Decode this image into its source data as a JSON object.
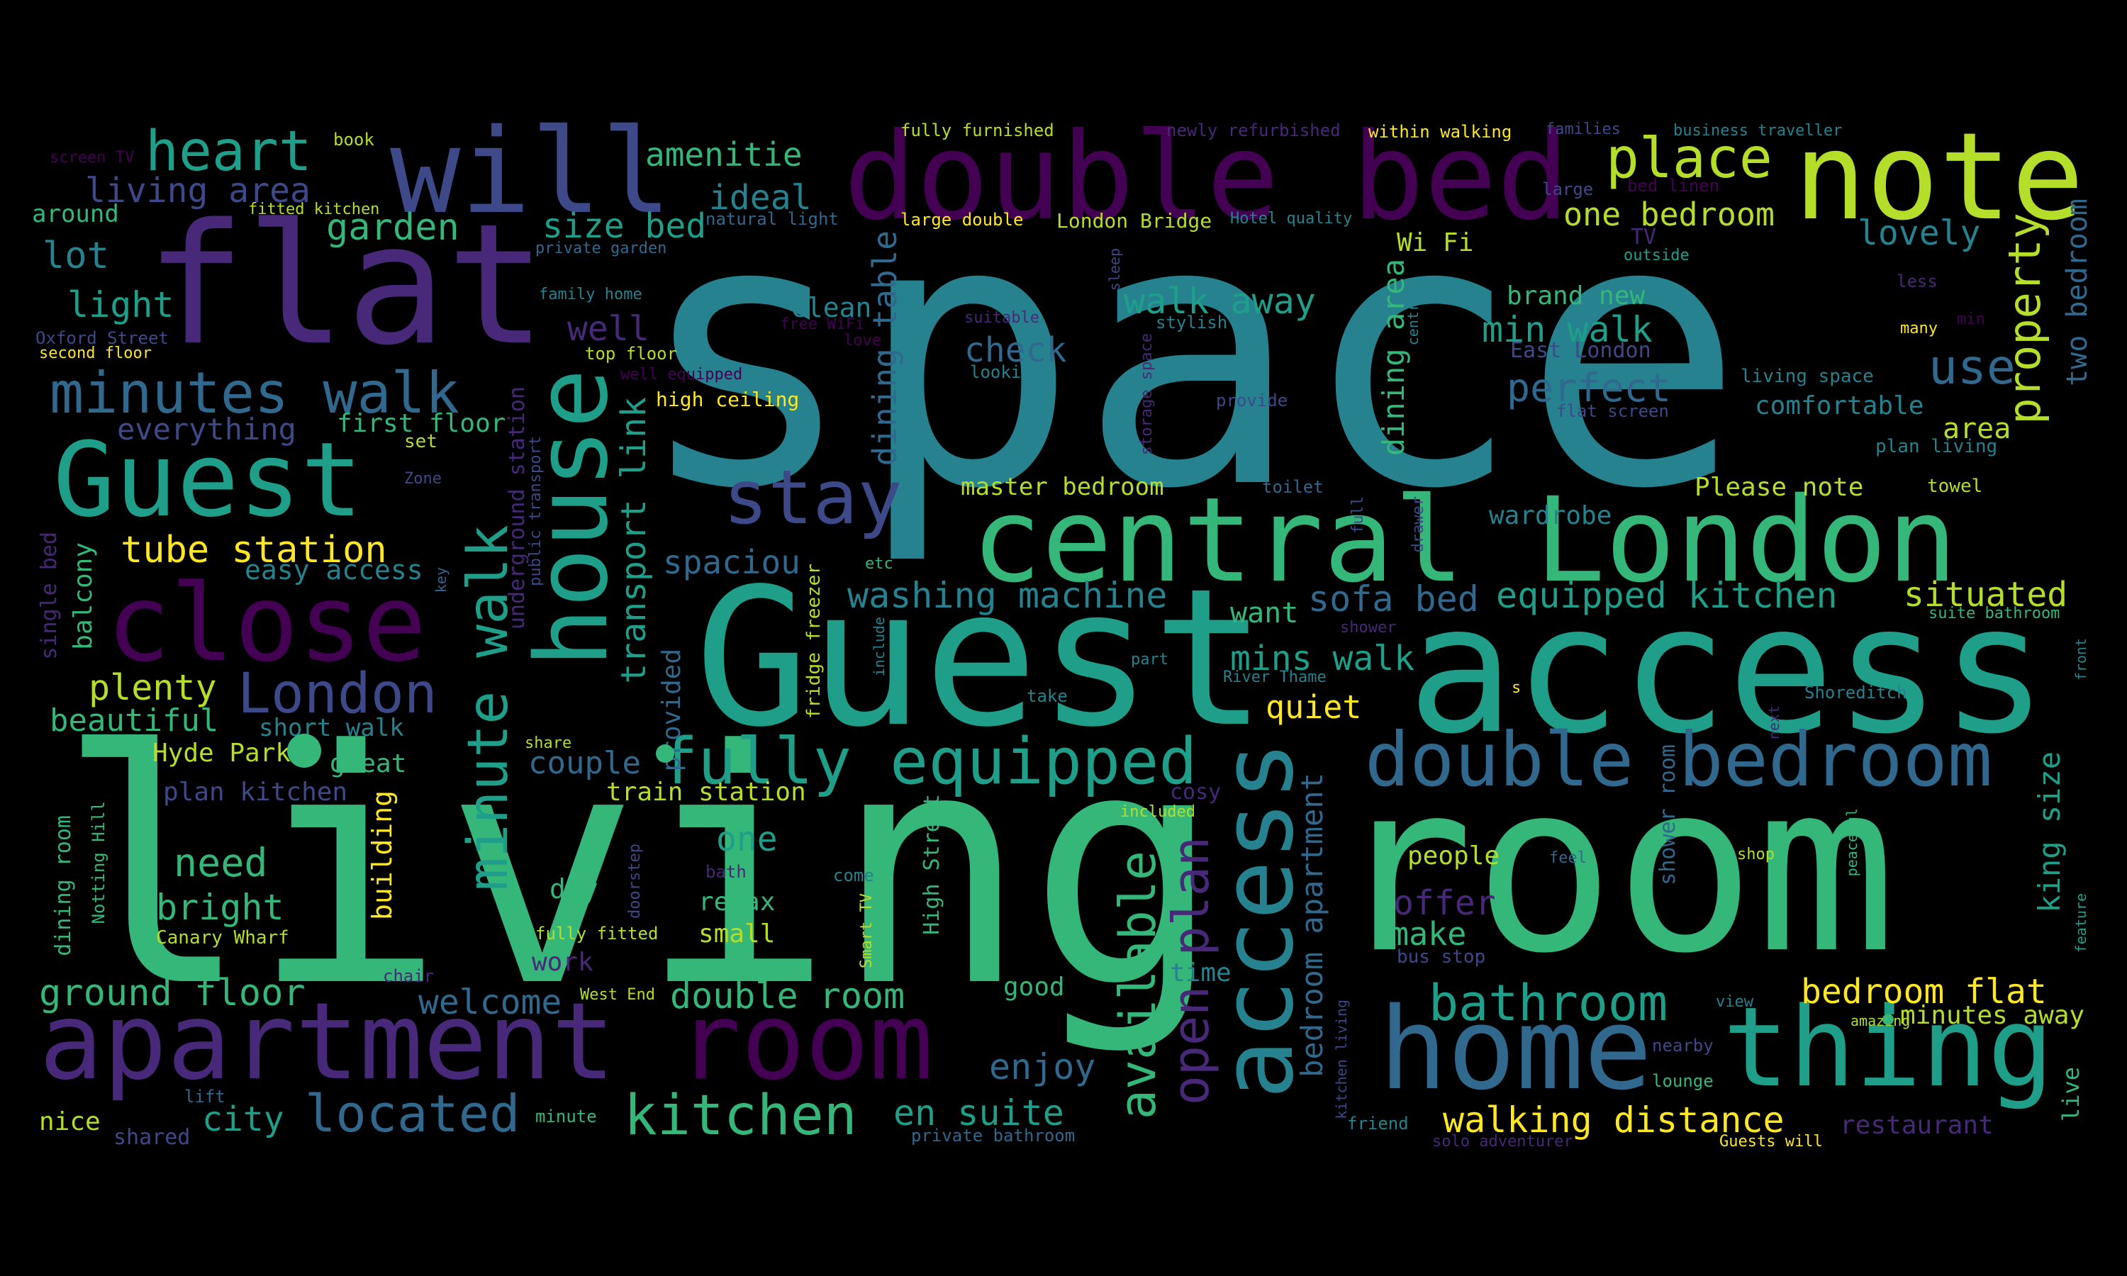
{
  "colors": {
    "background": "#000000",
    "dark_purple": "#440154",
    "purple": "#482878",
    "indigo": "#3e4989",
    "blue": "#31688e",
    "teal": "#26828e",
    "sea_green": "#1f9e89",
    "green": "#35b779",
    "light_green": "#6ece58",
    "lime": "#b5de2b",
    "yellow": "#fde725"
  },
  "words": [
    {
      "text": "space"
    },
    {
      "text": "living"
    },
    {
      "text": "room"
    },
    {
      "text": "Guest"
    },
    {
      "text": "access"
    },
    {
      "text": "flat"
    },
    {
      "text": "double bed"
    },
    {
      "text": "central London"
    },
    {
      "text": "note"
    },
    {
      "text": "will"
    },
    {
      "text": "apartment"
    },
    {
      "text": "room"
    },
    {
      "text": "home"
    },
    {
      "text": "thing"
    },
    {
      "text": "close"
    },
    {
      "text": "Guest"
    },
    {
      "text": "house"
    },
    {
      "text": "access"
    },
    {
      "text": "double bedroom"
    },
    {
      "text": "fully equipped"
    },
    {
      "text": "minutes walk"
    },
    {
      "text": "minute walk"
    },
    {
      "text": "heart"
    },
    {
      "text": "place"
    },
    {
      "text": "stay"
    },
    {
      "text": "London"
    },
    {
      "text": "kitchen"
    },
    {
      "text": "located"
    },
    {
      "text": "bathroom"
    },
    {
      "text": "available"
    },
    {
      "text": "open plan"
    },
    {
      "text": "property"
    },
    {
      "text": "use"
    },
    {
      "text": "walking distance"
    },
    {
      "text": "en suite"
    },
    {
      "text": "equipped kitchen"
    },
    {
      "text": "washing machine"
    },
    {
      "text": "sofa bed"
    },
    {
      "text": "tube station"
    },
    {
      "text": "bedroom flat"
    },
    {
      "text": "perfect"
    },
    {
      "text": "min walk"
    },
    {
      "text": "walk away"
    },
    {
      "text": "one bedroom"
    },
    {
      "text": "lovely"
    },
    {
      "text": "situated"
    },
    {
      "text": "double room"
    },
    {
      "text": "ground floor"
    },
    {
      "text": "welcome"
    },
    {
      "text": "enjoy"
    },
    {
      "text": "city"
    },
    {
      "text": "need"
    },
    {
      "text": "bright"
    },
    {
      "text": "plenty"
    },
    {
      "text": "beautiful"
    },
    {
      "text": "living area"
    },
    {
      "text": "garden"
    },
    {
      "text": "lot"
    },
    {
      "text": "light"
    },
    {
      "text": "amenitie"
    },
    {
      "text": "ideal"
    },
    {
      "text": "size bed"
    },
    {
      "text": "well"
    },
    {
      "text": "check"
    },
    {
      "text": "clean"
    },
    {
      "text": "transport link"
    },
    {
      "text": "dining table"
    },
    {
      "text": "dining area"
    },
    {
      "text": "two bedroom"
    },
    {
      "text": "mins walk"
    },
    {
      "text": "quiet"
    },
    {
      "text": "spaciou"
    },
    {
      "text": "couple"
    },
    {
      "text": "one"
    },
    {
      "text": "make"
    },
    {
      "text": "offer"
    },
    {
      "text": "king size"
    },
    {
      "text": "bedroom apartment"
    },
    {
      "text": "everything"
    },
    {
      "text": "first floor"
    },
    {
      "text": "easy access"
    },
    {
      "text": "short walk"
    },
    {
      "text": "Hyde Park"
    },
    {
      "text": "great"
    },
    {
      "text": "plan kitchen"
    },
    {
      "text": "train station"
    },
    {
      "text": "master bedroom"
    },
    {
      "text": "comfortable"
    },
    {
      "text": "brand new"
    },
    {
      "text": "Wi Fi"
    },
    {
      "text": "Please note"
    },
    {
      "text": "area"
    },
    {
      "text": "want"
    },
    {
      "text": "people"
    },
    {
      "text": "day"
    },
    {
      "text": "relax"
    },
    {
      "text": "small"
    },
    {
      "text": "work"
    },
    {
      "text": "good"
    },
    {
      "text": "time"
    },
    {
      "text": "building"
    },
    {
      "text": "balcony"
    },
    {
      "text": "nice"
    },
    {
      "text": "shared"
    },
    {
      "text": "minutes away"
    },
    {
      "text": "restaurant"
    },
    {
      "text": "provided"
    },
    {
      "text": "wardrobe"
    },
    {
      "text": "East London"
    },
    {
      "text": "around"
    },
    {
      "text": "fitted kitchen"
    },
    {
      "text": "book"
    },
    {
      "text": "screen TV"
    },
    {
      "text": "Oxford Street"
    },
    {
      "text": "second floor"
    },
    {
      "text": "top floor"
    },
    {
      "text": "family home"
    },
    {
      "text": "private garden"
    },
    {
      "text": "natural light"
    },
    {
      "text": "fully furnished"
    },
    {
      "text": "newly refurbished"
    },
    {
      "text": "within walking"
    },
    {
      "text": "families"
    },
    {
      "text": "business traveller"
    },
    {
      "text": "large"
    },
    {
      "text": "bed linen"
    },
    {
      "text": "large double"
    },
    {
      "text": "London Bridge"
    },
    {
      "text": "Hotel quality"
    },
    {
      "text": "TV"
    },
    {
      "text": "outside"
    },
    {
      "text": "less"
    },
    {
      "text": "min"
    },
    {
      "text": "many"
    },
    {
      "text": "stylish"
    },
    {
      "text": "free WiFi"
    },
    {
      "text": "suitable"
    },
    {
      "text": "love"
    },
    {
      "text": "looking"
    },
    {
      "text": "well equipped"
    },
    {
      "text": "high ceiling"
    },
    {
      "text": "provide"
    },
    {
      "text": "living space"
    },
    {
      "text": "flat screen"
    },
    {
      "text": "plan living"
    },
    {
      "text": "towel"
    },
    {
      "text": "toilet"
    },
    {
      "text": "set"
    },
    {
      "text": "Zone"
    },
    {
      "text": "fully fitted"
    },
    {
      "text": "Canary Wharf"
    },
    {
      "text": "Notting Hill"
    },
    {
      "text": "dining room"
    },
    {
      "text": "single bed"
    },
    {
      "text": "underground station"
    },
    {
      "text": "public transport"
    },
    {
      "text": "key"
    },
    {
      "text": "fridge freezer"
    },
    {
      "text": "etc"
    },
    {
      "text": "include"
    },
    {
      "text": "share"
    },
    {
      "text": "storage space"
    },
    {
      "text": "sleep"
    },
    {
      "text": "centre"
    },
    {
      "text": "full"
    },
    {
      "text": "drawer"
    },
    {
      "text": "shower"
    },
    {
      "text": "part"
    },
    {
      "text": "River Thame"
    },
    {
      "text": "take"
    },
    {
      "text": "s"
    },
    {
      "text": "Shoreditch"
    },
    {
      "text": "suite bathroom"
    },
    {
      "text": "next"
    },
    {
      "text": "front"
    },
    {
      "text": "cosy"
    },
    {
      "text": "included"
    },
    {
      "text": "High Street"
    },
    {
      "text": "doorstep"
    },
    {
      "text": "bath"
    },
    {
      "text": "come"
    },
    {
      "text": "Smart TV"
    },
    {
      "text": "shower room"
    },
    {
      "text": "feel"
    },
    {
      "text": "shop"
    },
    {
      "text": "peaceful"
    },
    {
      "text": "feature"
    },
    {
      "text": "chair"
    },
    {
      "text": "West End"
    },
    {
      "text": "lift"
    },
    {
      "text": "minute"
    },
    {
      "text": "private bathroom"
    },
    {
      "text": "view"
    },
    {
      "text": "amazing"
    },
    {
      "text": "nearby"
    },
    {
      "text": "lounge"
    },
    {
      "text": "friend"
    },
    {
      "text": "solo adventurer"
    },
    {
      "text": "Guests will"
    },
    {
      "text": "bus stop"
    },
    {
      "text": "kitchen living"
    },
    {
      "text": "live"
    }
  ]
}
